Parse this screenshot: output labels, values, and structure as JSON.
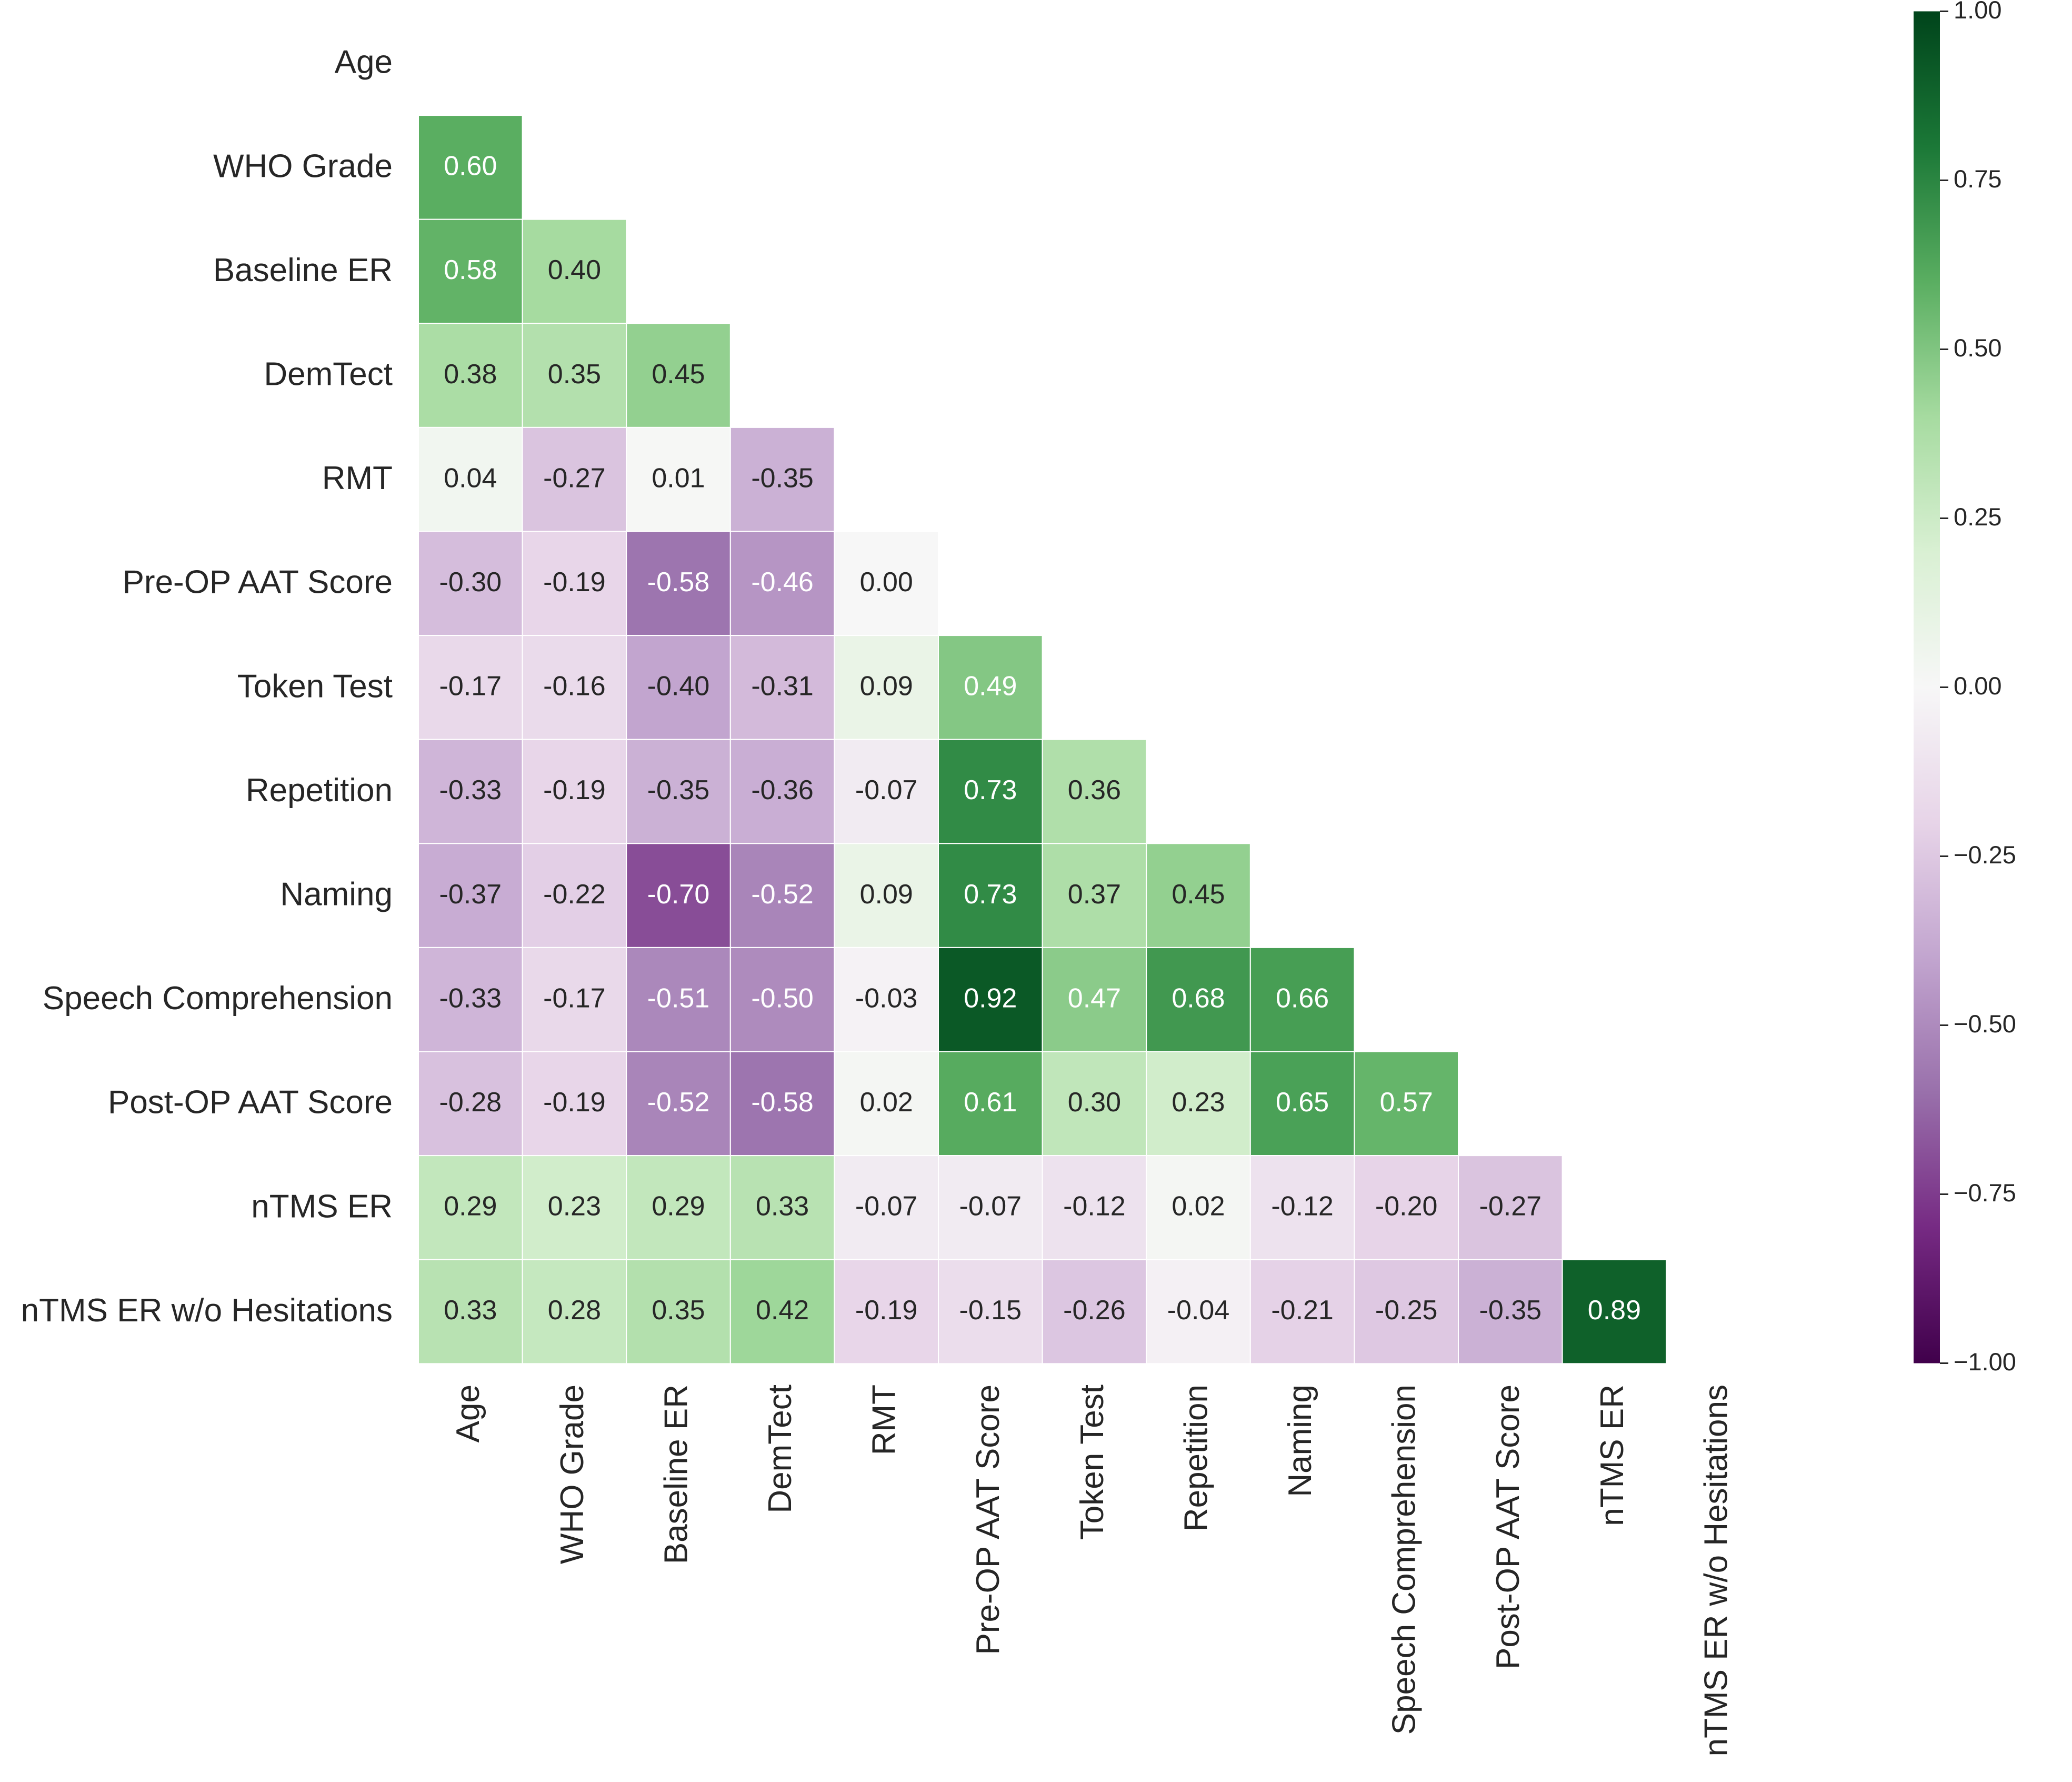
{
  "chart_data": {
    "type": "heatmap",
    "title": "",
    "labels": [
      "Age",
      "WHO Grade",
      "Baseline ER",
      "DemTect",
      "RMT",
      "Pre-OP AAT Score",
      "Token Test",
      "Repetition",
      "Naming",
      "Speech Comprehension",
      "Post-OP AAT Score",
      "nTMS ER",
      "nTMS ER w/o Hesitations"
    ],
    "matrix": [
      [],
      [
        0.6
      ],
      [
        0.58,
        0.4
      ],
      [
        0.38,
        0.35,
        0.45
      ],
      [
        0.04,
        -0.27,
        0.01,
        -0.35
      ],
      [
        -0.3,
        -0.19,
        -0.58,
        -0.46,
        0.0
      ],
      [
        -0.17,
        -0.16,
        -0.4,
        -0.31,
        0.09,
        0.49
      ],
      [
        -0.33,
        -0.19,
        -0.35,
        -0.36,
        -0.07,
        0.73,
        0.36
      ],
      [
        -0.37,
        -0.22,
        -0.7,
        -0.52,
        0.09,
        0.73,
        0.37,
        0.45
      ],
      [
        -0.33,
        -0.17,
        -0.51,
        -0.5,
        -0.03,
        0.92,
        0.47,
        0.68,
        0.66
      ],
      [
        -0.28,
        -0.19,
        -0.52,
        -0.58,
        0.02,
        0.61,
        0.3,
        0.23,
        0.65,
        0.57
      ],
      [
        0.29,
        0.23,
        0.29,
        0.33,
        -0.07,
        -0.07,
        -0.12,
        0.02,
        -0.12,
        -0.2,
        -0.27
      ],
      [
        0.33,
        0.28,
        0.35,
        0.42,
        -0.19,
        -0.15,
        -0.26,
        -0.04,
        -0.21,
        -0.25,
        -0.35,
        0.89
      ]
    ],
    "value_format": "2 decimals",
    "vmin": -1.0,
    "vmax": 1.0,
    "colormap": "PRGn",
    "colorbar": {
      "ticks": [
        1.0,
        0.75,
        0.5,
        0.25,
        0.0,
        -0.25,
        -0.5,
        -0.75,
        -1.0
      ],
      "tick_labels": [
        "1.00",
        "0.75",
        "0.50",
        "0.25",
        "0.00",
        "−0.25",
        "−0.50",
        "−0.75",
        "−1.00"
      ]
    },
    "colors": {
      "dark_purple": "#40004b",
      "purple": "#762a83",
      "mid_purple": "#9970ab",
      "light_purple": "#c2a5cf",
      "pale_purple": "#e7d4e8",
      "neutral": "#f7f7f7",
      "pale_green": "#d9f0d3",
      "light_green": "#a6dba0",
      "mid_green": "#5aae61",
      "green": "#1b7837",
      "dark_green": "#00441b"
    }
  }
}
